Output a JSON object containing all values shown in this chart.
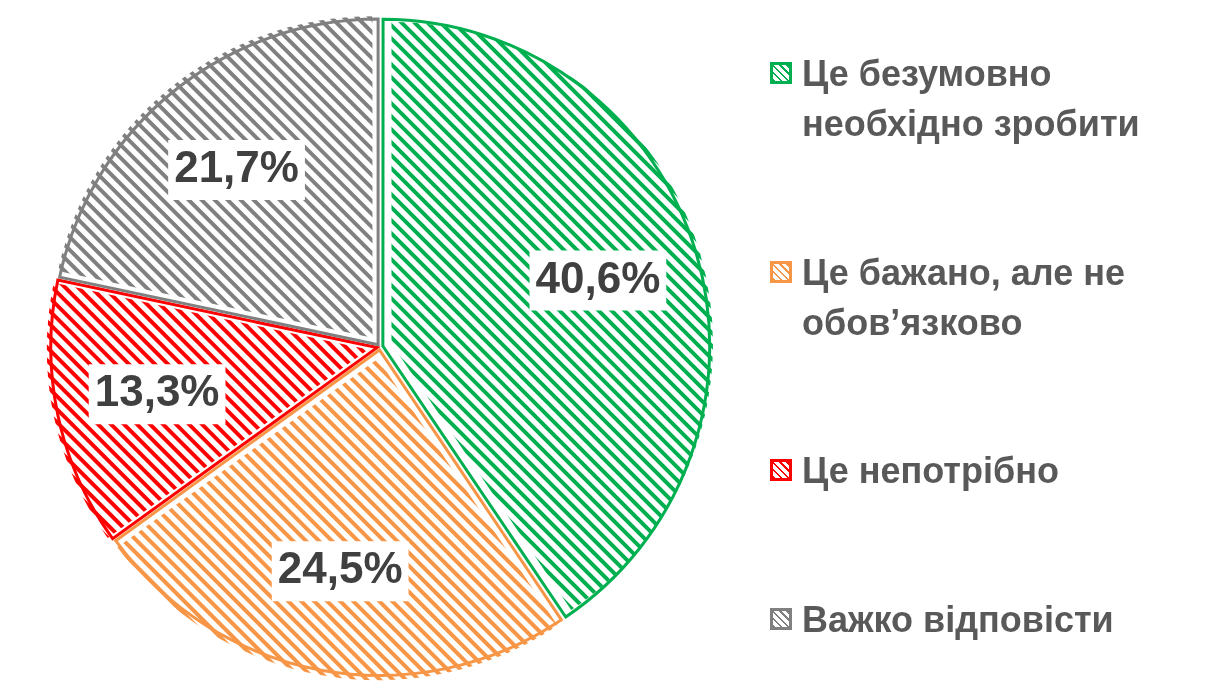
{
  "chart_data": {
    "type": "pie",
    "categories": [
      "Це безумовно необхідно зробити",
      "Це бажано, але не обов’язково",
      "Це непотрібно",
      "Важко відповісти"
    ],
    "values": [
      40.6,
      24.5,
      13.3,
      21.7
    ],
    "colors": [
      "#00b050",
      "#f79646",
      "#ff0000",
      "#808080"
    ],
    "value_labels": [
      "40,6%",
      "24,5%",
      "13,3%",
      "21,7%"
    ],
    "legend": "right"
  }
}
